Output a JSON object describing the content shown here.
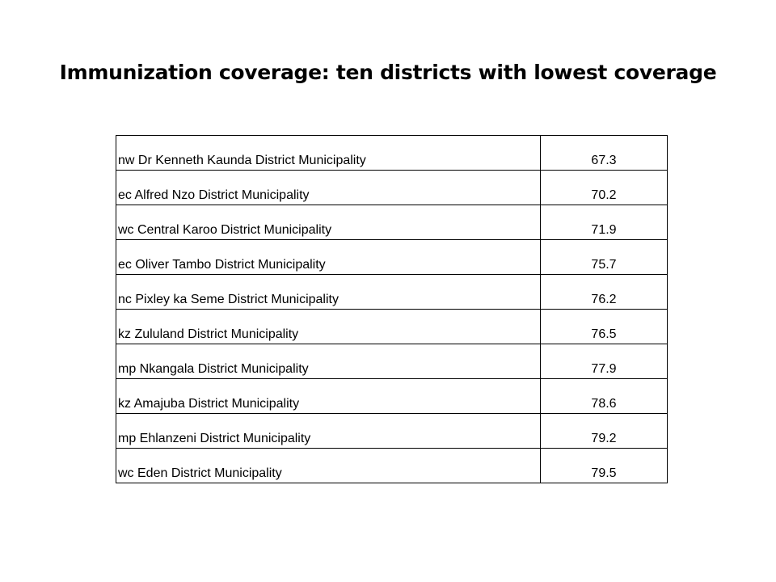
{
  "title": "Immunization coverage: ten districts with lowest coverage",
  "table": {
    "rows": [
      {
        "district": "nw Dr Kenneth Kaunda District Municipality",
        "value": "67.3"
      },
      {
        "district": "ec Alfred Nzo District Municipality",
        "value": "70.2"
      },
      {
        "district": "wc Central Karoo District Municipality",
        "value": "71.9"
      },
      {
        "district": "ec Oliver Tambo District Municipality",
        "value": "75.7"
      },
      {
        "district": "nc Pixley ka Seme District Municipality",
        "value": "76.2"
      },
      {
        "district": "kz Zululand District Municipality",
        "value": "76.5"
      },
      {
        "district": "mp Nkangala District Municipality",
        "value": "77.9"
      },
      {
        "district": "kz Amajuba District Municipality",
        "value": "78.6"
      },
      {
        "district": "mp Ehlanzeni District Municipality",
        "value": "79.2"
      },
      {
        "district": "wc Eden District Municipality",
        "value": "79.5"
      }
    ]
  }
}
